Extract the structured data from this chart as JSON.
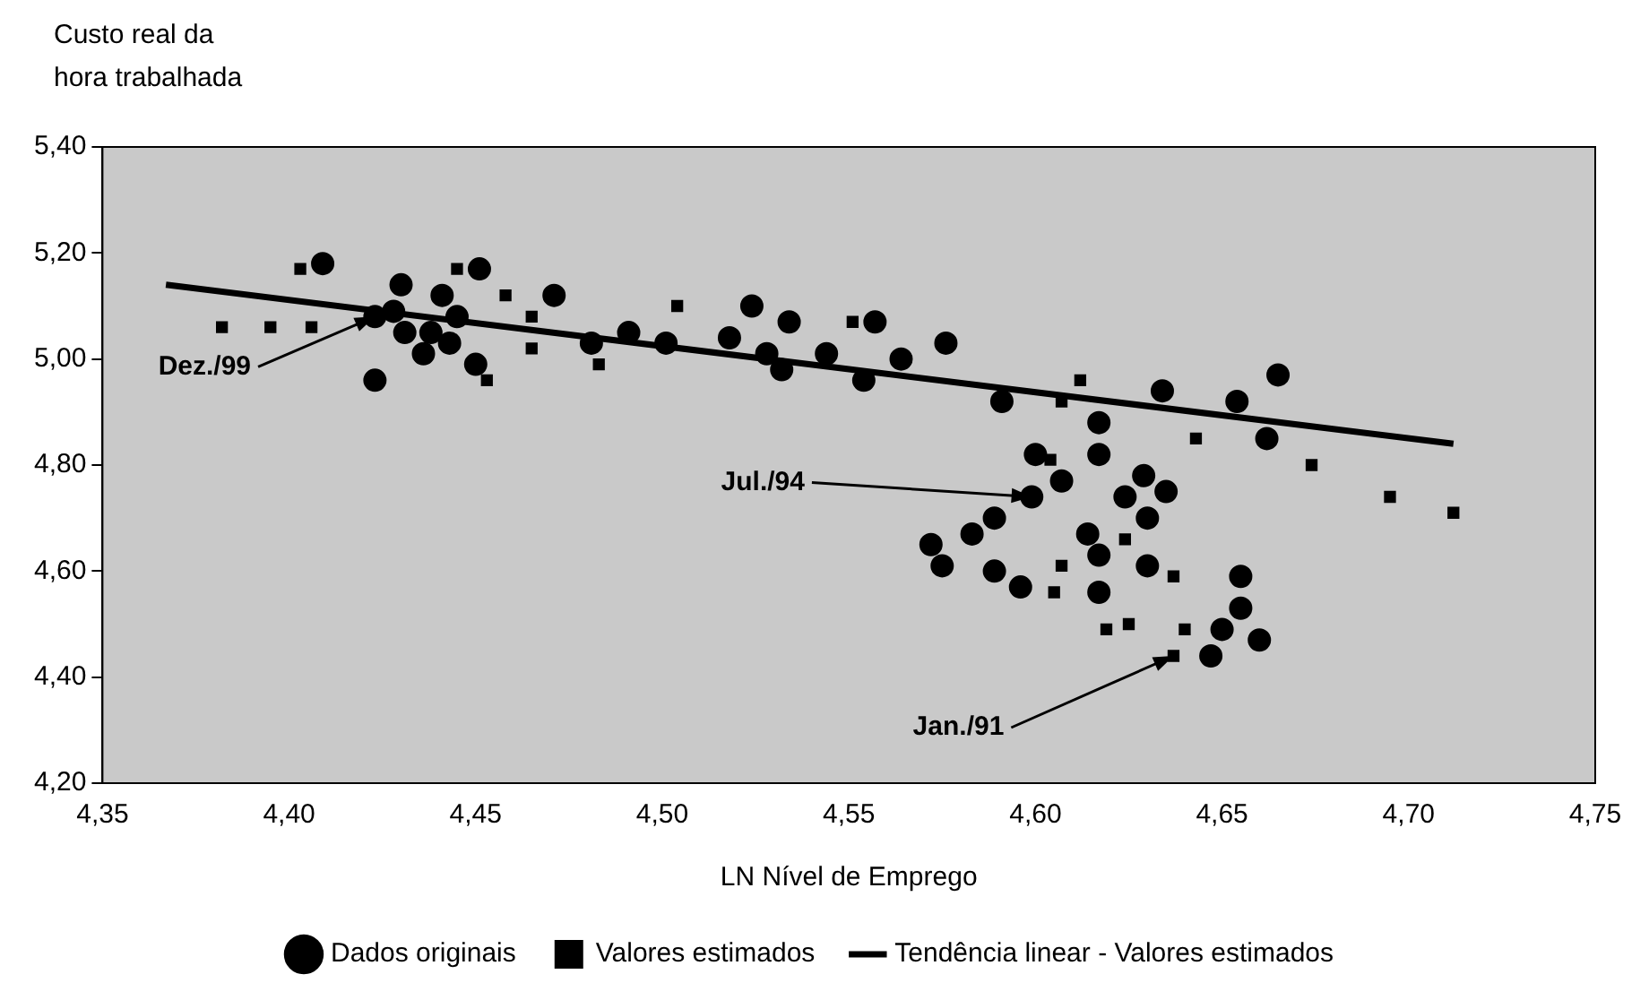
{
  "chart_data": {
    "type": "scatter",
    "xlabel": "LN Nível de Emprego",
    "ylabel": "Custo real da hora trabalhada",
    "xlim": [
      4.35,
      4.75
    ],
    "ylim": [
      4.2,
      5.4
    ],
    "xticks": [
      {
        "value": 4.35,
        "label": "4,35"
      },
      {
        "value": 4.4,
        "label": "4,40"
      },
      {
        "value": 4.45,
        "label": "4,45"
      },
      {
        "value": 4.5,
        "label": "4,50"
      },
      {
        "value": 4.55,
        "label": "4,55"
      },
      {
        "value": 4.6,
        "label": "4,60"
      },
      {
        "value": 4.65,
        "label": "4,65"
      },
      {
        "value": 4.7,
        "label": "4,70"
      },
      {
        "value": 4.75,
        "label": "4,75"
      }
    ],
    "yticks": [
      {
        "value": 4.2,
        "label": "4,20"
      },
      {
        "value": 4.4,
        "label": "4,40"
      },
      {
        "value": 4.6,
        "label": "4,60"
      },
      {
        "value": 4.8,
        "label": "4,80"
      },
      {
        "value": 5.0,
        "label": "5,00"
      },
      {
        "value": 5.2,
        "label": "5,20"
      },
      {
        "value": 5.4,
        "label": "5,40"
      }
    ],
    "legend": "bottom",
    "series": [
      {
        "name": "Dados originais",
        "marker": "circle",
        "color": "#000000",
        "x": [
          4.409,
          4.43,
          4.441,
          4.451,
          4.471,
          4.445,
          4.423,
          4.431,
          4.438,
          4.45,
          4.423,
          4.436,
          4.524,
          4.534,
          4.532,
          4.544,
          4.491,
          4.501,
          4.518,
          4.528,
          4.481,
          4.428,
          4.443,
          4.557,
          4.554,
          4.564,
          4.576,
          4.591,
          4.617,
          4.634,
          4.654,
          4.665,
          4.662,
          4.6,
          4.617,
          4.629,
          4.635,
          4.589,
          4.583,
          4.572,
          4.575,
          4.589,
          4.596,
          4.617,
          4.614,
          4.63,
          4.624,
          4.599,
          4.63,
          4.655,
          4.655,
          4.65,
          4.66,
          4.647,
          4.617,
          4.607
        ],
        "values": [
          5.18,
          5.14,
          5.12,
          5.17,
          5.12,
          5.08,
          5.08,
          5.05,
          5.05,
          4.99,
          4.96,
          5.01,
          5.1,
          5.07,
          4.98,
          5.01,
          5.05,
          5.03,
          5.04,
          5.01,
          5.03,
          5.09,
          5.03,
          5.07,
          4.96,
          5.0,
          5.03,
          4.92,
          4.88,
          4.94,
          4.92,
          4.97,
          4.85,
          4.82,
          4.82,
          4.78,
          4.75,
          4.7,
          4.67,
          4.65,
          4.61,
          4.6,
          4.57,
          4.56,
          4.67,
          4.7,
          4.74,
          4.74,
          4.61,
          4.59,
          4.53,
          4.49,
          4.47,
          4.44,
          4.63,
          4.77
        ]
      },
      {
        "name": "Valores estimados",
        "marker": "square",
        "color": "#000000",
        "x": [
          4.382,
          4.395,
          4.406,
          4.403,
          4.445,
          4.458,
          4.465,
          4.483,
          4.453,
          4.465,
          4.504,
          4.551,
          4.612,
          4.607,
          4.643,
          4.674,
          4.695,
          4.712,
          4.604,
          4.607,
          4.605,
          4.637,
          4.619,
          4.637,
          4.625,
          4.64,
          4.624
        ],
        "values": [
          5.06,
          5.06,
          5.06,
          5.17,
          5.17,
          5.12,
          5.08,
          4.99,
          4.96,
          5.02,
          5.1,
          5.07,
          4.96,
          4.92,
          4.85,
          4.8,
          4.74,
          4.71,
          4.81,
          4.61,
          4.56,
          4.59,
          4.49,
          4.44,
          4.5,
          4.49,
          4.66
        ]
      },
      {
        "name": "Tendência linear - Valores estimados",
        "type": "line",
        "marker": "none",
        "color": "#000000",
        "x": [
          4.367,
          4.712
        ],
        "values": [
          5.14,
          4.84
        ]
      }
    ],
    "annotations": [
      {
        "text": "Dez./99",
        "x": 4.423,
        "y": 5.08
      },
      {
        "text": "Jul./94",
        "x": 4.599,
        "y": 4.74
      },
      {
        "text": "Jan./91",
        "x": 4.637,
        "y": 4.44
      }
    ]
  }
}
